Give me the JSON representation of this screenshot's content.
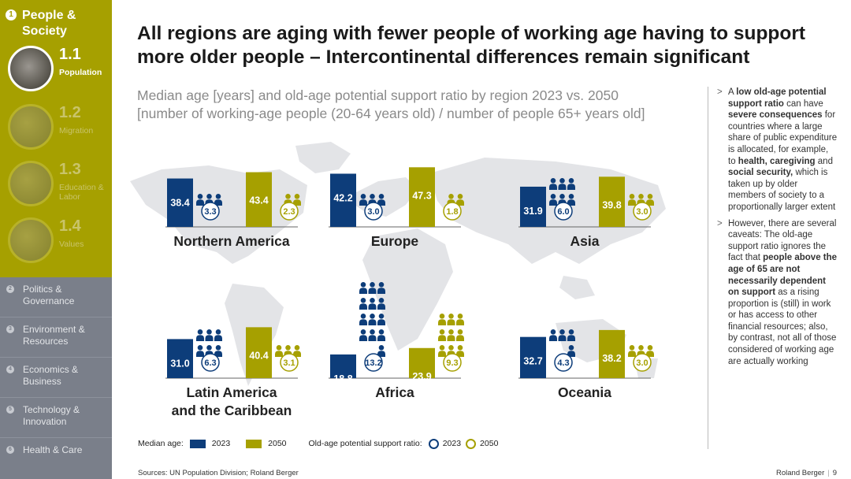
{
  "sidebar": {
    "section": {
      "number": "1",
      "title": "People & Society"
    },
    "subsections": [
      {
        "number": "1.1",
        "label": "Population",
        "active": true
      },
      {
        "number": "1.2",
        "label": "Migration",
        "active": false
      },
      {
        "number": "1.3",
        "label": "Education & Labor",
        "active": false
      },
      {
        "number": "1.4",
        "label": "Values",
        "active": false
      }
    ],
    "other_sections": [
      {
        "number": "2",
        "label": "Politics & Governance"
      },
      {
        "number": "3",
        "label": "Environment & Resources"
      },
      {
        "number": "4",
        "label": "Economics & Business"
      },
      {
        "number": "5",
        "label": "Technology & Innovation"
      },
      {
        "number": "6",
        "label": "Health & Care"
      }
    ]
  },
  "title": "All regions are aging with fewer people of working age having to support more older people – Intercontinental differences remain significant",
  "subtitle_line1": "Median age [years] and old-age potential support ratio by region 2023 vs. 2050",
  "subtitle_line2": "[number of working-age people (20-64 years old) / number of people 65+ years old]",
  "note": {
    "p1": [
      {
        "t": "A ",
        "b": false
      },
      {
        "t": "low old-age potential support ratio",
        "b": true
      },
      {
        "t": " can have ",
        "b": false
      },
      {
        "t": "severe consequences",
        "b": true
      },
      {
        "t": " for countries where a large share of public expenditure is allocated, for example, to ",
        "b": false
      },
      {
        "t": "health, caregiving",
        "b": true
      },
      {
        "t": " and ",
        "b": false
      },
      {
        "t": "social security,",
        "b": true
      },
      {
        "t": " which is taken up by older members of society to a proportionally larger extent",
        "b": false
      }
    ],
    "p2": [
      {
        "t": "However, there are several caveats: The old-age support ratio ignores the fact that ",
        "b": false
      },
      {
        "t": "people above the age of 65 are not necessarily dependent on support",
        "b": true
      },
      {
        "t": " as a rising proportion is (still) in work or has access to other financial resources; also, by contrast, not all of those considered of working age are actually working",
        "b": false
      }
    ]
  },
  "legend": {
    "median_label": "Median age:",
    "year_a": "2023",
    "year_b": "2050",
    "ratio_label": "Old-age potential support ratio:"
  },
  "sources": "Sources: UN Population Division; Roland Berger",
  "brand": "Roland Berger",
  "page_number": "9",
  "colors": {
    "c2023": "#0d3d7a",
    "c2050": "#a6a000",
    "map": "#e3e4e7"
  },
  "chart_data": {
    "type": "bar",
    "title": "Median age [years] and old-age potential support ratio by region 2023 vs. 2050",
    "series": [
      {
        "name": "Median age 2023",
        "values": [
          38.4,
          42.2,
          31.9,
          31.0,
          18.8,
          32.7
        ]
      },
      {
        "name": "Median age 2050",
        "values": [
          43.4,
          47.3,
          39.8,
          40.4,
          23.9,
          38.2
        ]
      },
      {
        "name": "Old-age potential support ratio 2023",
        "values": [
          3.3,
          3.0,
          6.0,
          6.3,
          13.2,
          4.3
        ]
      },
      {
        "name": "Old-age potential support ratio 2050",
        "values": [
          2.3,
          1.8,
          3.0,
          3.1,
          9.3,
          3.0
        ]
      }
    ],
    "regions": [
      {
        "name": "Northern America",
        "median_2023": 38.4,
        "median_2050": 43.4,
        "ratio_2023": "3.3",
        "ratio_2050": "2.3"
      },
      {
        "name": "Europe",
        "median_2023": 42.2,
        "median_2050": 47.3,
        "ratio_2023": "3.0",
        "ratio_2050": "1.8"
      },
      {
        "name": "Asia",
        "median_2023": 31.9,
        "median_2050": 39.8,
        "ratio_2023": "6.0",
        "ratio_2050": "3.0"
      },
      {
        "name": "Latin America and the Caribbean",
        "median_2023": 31.0,
        "median_2050": 40.4,
        "ratio_2023": "6.3",
        "ratio_2050": "3.1"
      },
      {
        "name": "Africa",
        "median_2023": 18.8,
        "median_2050": 23.9,
        "ratio_2023": "13.2",
        "ratio_2050": "9.3"
      },
      {
        "name": "Oceania",
        "median_2023": 32.7,
        "median_2050": 38.2,
        "ratio_2023": "4.3",
        "ratio_2050": "3.0"
      }
    ]
  }
}
